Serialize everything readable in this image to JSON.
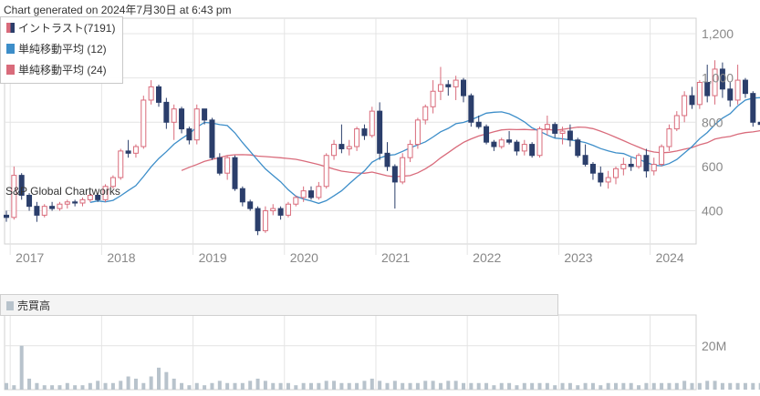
{
  "header": {
    "generated": "Chart generated on 2024年7月30日 at 6:43 pm"
  },
  "legend": [
    {
      "label": "イントラスト(7191)",
      "color": "#2b3e6b",
      "icon": "candlestick-icon"
    },
    {
      "label": "単純移動平均 (12)",
      "color": "#3d8ec9",
      "icon": "line-swatch-icon"
    },
    {
      "label": "単純移動平均 (24)",
      "color": "#d96b7b",
      "icon": "line-swatch-icon"
    }
  ],
  "watermark": "S&P Global Chartworks",
  "volume_panel": {
    "title": "売買高",
    "color": "#b8c3cc"
  },
  "colors": {
    "up": "#d96b7b",
    "down": "#2b3e6b",
    "sma12": "#3d8ec9",
    "sma24": "#d96b7b",
    "grid": "#e4e4e4"
  },
  "chart_data": [
    {
      "type": "candlestick",
      "series_name": "イントラスト(7191)",
      "x_tick_labels": [
        "2017",
        "2018",
        "2019",
        "2020",
        "2021",
        "2022",
        "2023",
        "2024"
      ],
      "y_tick_labels": [
        "1,200",
        "1,000",
        "800",
        "600",
        "400"
      ],
      "ylim": [
        250,
        1270
      ],
      "grid": true,
      "start_month": "2016-12",
      "interval": "monthly",
      "ohlc": [
        [
          380,
          400,
          350,
          370
        ],
        [
          370,
          600,
          360,
          560
        ],
        [
          560,
          570,
          450,
          470
        ],
        [
          470,
          480,
          400,
          420
        ],
        [
          420,
          440,
          350,
          380
        ],
        [
          380,
          430,
          370,
          420
        ],
        [
          420,
          440,
          400,
          410
        ],
        [
          410,
          440,
          400,
          430
        ],
        [
          430,
          450,
          410,
          440
        ],
        [
          440,
          450,
          420,
          435
        ],
        [
          435,
          460,
          420,
          450
        ],
        [
          450,
          480,
          440,
          470
        ],
        [
          470,
          480,
          440,
          450
        ],
        [
          450,
          520,
          440,
          510
        ],
        [
          510,
          560,
          500,
          550
        ],
        [
          550,
          680,
          540,
          670
        ],
        [
          670,
          720,
          640,
          660
        ],
        [
          660,
          700,
          640,
          690
        ],
        [
          690,
          920,
          680,
          900
        ],
        [
          900,
          990,
          880,
          960
        ],
        [
          960,
          970,
          870,
          890
        ],
        [
          890,
          910,
          770,
          800
        ],
        [
          800,
          880,
          720,
          860
        ],
        [
          860,
          870,
          750,
          770
        ],
        [
          770,
          780,
          700,
          720
        ],
        [
          720,
          880,
          700,
          860
        ],
        [
          860,
          860,
          790,
          810
        ],
        [
          810,
          820,
          630,
          640
        ],
        [
          640,
          660,
          560,
          570
        ],
        [
          570,
          650,
          540,
          640
        ],
        [
          640,
          650,
          490,
          500
        ],
        [
          500,
          510,
          420,
          440
        ],
        [
          440,
          450,
          400,
          410
        ],
        [
          410,
          420,
          290,
          310
        ],
        [
          310,
          420,
          300,
          400
        ],
        [
          400,
          430,
          380,
          410
        ],
        [
          410,
          420,
          360,
          380
        ],
        [
          380,
          440,
          370,
          430
        ],
        [
          430,
          470,
          420,
          460
        ],
        [
          460,
          510,
          440,
          490
        ],
        [
          490,
          510,
          450,
          460
        ],
        [
          460,
          530,
          450,
          510
        ],
        [
          510,
          660,
          500,
          650
        ],
        [
          650,
          720,
          630,
          700
        ],
        [
          700,
          790,
          660,
          680
        ],
        [
          680,
          720,
          650,
          690
        ],
        [
          690,
          780,
          670,
          770
        ],
        [
          770,
          790,
          720,
          740
        ],
        [
          740,
          870,
          730,
          850
        ],
        [
          850,
          890,
          630,
          660
        ],
        [
          660,
          710,
          580,
          600
        ],
        [
          600,
          610,
          410,
          530
        ],
        [
          530,
          660,
          520,
          640
        ],
        [
          640,
          720,
          620,
          700
        ],
        [
          700,
          820,
          680,
          810
        ],
        [
          810,
          880,
          790,
          870
        ],
        [
          870,
          990,
          840,
          940
        ],
        [
          940,
          1050,
          900,
          970
        ],
        [
          970,
          990,
          920,
          960
        ],
        [
          960,
          1010,
          900,
          990
        ],
        [
          990,
          1000,
          890,
          920
        ],
        [
          920,
          930,
          780,
          800
        ],
        [
          800,
          830,
          770,
          780
        ],
        [
          780,
          790,
          700,
          710
        ],
        [
          710,
          720,
          670,
          690
        ],
        [
          690,
          730,
          680,
          720
        ],
        [
          720,
          760,
          700,
          710
        ],
        [
          710,
          720,
          650,
          670
        ],
        [
          670,
          720,
          650,
          700
        ],
        [
          700,
          710,
          640,
          650
        ],
        [
          650,
          780,
          640,
          770
        ],
        [
          770,
          830,
          740,
          790
        ],
        [
          790,
          800,
          730,
          750
        ],
        [
          750,
          780,
          700,
          760
        ],
        [
          760,
          790,
          690,
          720
        ],
        [
          720,
          730,
          640,
          650
        ],
        [
          650,
          700,
          600,
          610
        ],
        [
          610,
          620,
          540,
          570
        ],
        [
          570,
          600,
          510,
          530
        ],
        [
          530,
          580,
          500,
          550
        ],
        [
          550,
          600,
          520,
          590
        ],
        [
          590,
          640,
          560,
          610
        ],
        [
          610,
          640,
          580,
          600
        ],
        [
          600,
          660,
          590,
          650
        ],
        [
          650,
          680,
          550,
          580
        ],
        [
          580,
          640,
          560,
          610
        ],
        [
          610,
          700,
          600,
          690
        ],
        [
          690,
          790,
          670,
          770
        ],
        [
          770,
          850,
          760,
          830
        ],
        [
          830,
          940,
          800,
          920
        ],
        [
          920,
          960,
          860,
          880
        ],
        [
          880,
          990,
          860,
          980
        ],
        [
          980,
          1060,
          890,
          920
        ],
        [
          920,
          1080,
          880,
          1040
        ],
        [
          1040,
          1070,
          910,
          950
        ],
        [
          950,
          980,
          870,
          900
        ],
        [
          900,
          1060,
          880,
          990
        ],
        [
          990,
          1000,
          910,
          930
        ],
        [
          930,
          940,
          780,
          800
        ],
        [
          800,
          820,
          770,
          790
        ],
        [
          790,
          880,
          780,
          860
        ],
        [
          860,
          870,
          770,
          780
        ],
        [
          780,
          820,
          760,
          810
        ],
        [
          810,
          870,
          790,
          850
        ],
        [
          850,
          880,
          820,
          830
        ],
        [
          830,
          900,
          800,
          880
        ],
        [
          880,
          890,
          760,
          770
        ],
        [
          770,
          840,
          750,
          830
        ],
        [
          830,
          840,
          740,
          750
        ]
      ],
      "volume": [
        3,
        2,
        20,
        5,
        3,
        2,
        2,
        2,
        3,
        2,
        2,
        3,
        4,
        3,
        3,
        4,
        6,
        5,
        3,
        6,
        10,
        8,
        5,
        3,
        2,
        3,
        2,
        3,
        4,
        3,
        3,
        3,
        4,
        5,
        4,
        3,
        3,
        3,
        2,
        3,
        3,
        3,
        4,
        4,
        3,
        3,
        3,
        4,
        5,
        4,
        3,
        4,
        3,
        3,
        3,
        4,
        4,
        3,
        4,
        4,
        3,
        3,
        3,
        3,
        2,
        3,
        3,
        2,
        3,
        3,
        3,
        3,
        2,
        3,
        3,
        2,
        3,
        3,
        2,
        3,
        3,
        3,
        3,
        2,
        3,
        3,
        3,
        3,
        3,
        4,
        3,
        3,
        4,
        4,
        3,
        3,
        3,
        3,
        3,
        3,
        3,
        3,
        3,
        3,
        3,
        3,
        3,
        3,
        3
      ],
      "volume_tick_labels": [
        "20M"
      ],
      "volume_ylim": [
        0,
        34
      ]
    }
  ]
}
